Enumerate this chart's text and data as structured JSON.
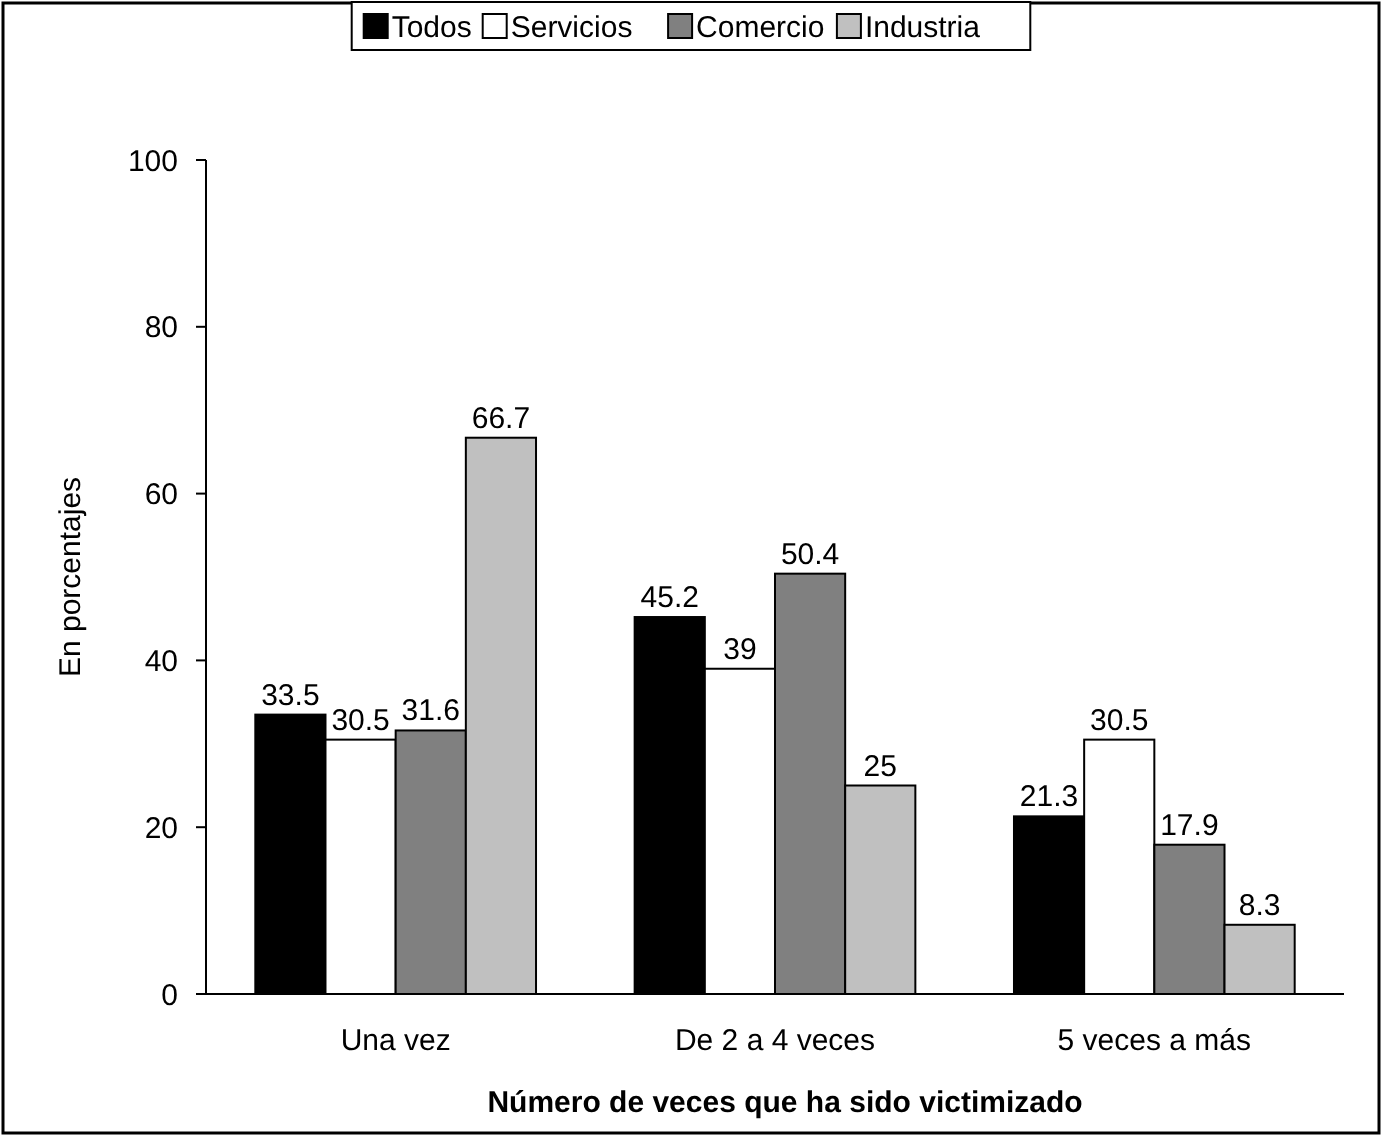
{
  "chart_data": {
    "type": "bar",
    "xlabel": "Número de veces que ha sido victimizado",
    "ylabel": "En porcentajes",
    "categories": [
      "Una vez",
      "De 2 a 4 veces",
      "5 veces a más"
    ],
    "series": [
      {
        "name": "Todos",
        "color": "#000000",
        "values": [
          33.5,
          45.2,
          21.3
        ]
      },
      {
        "name": "Servicios",
        "color": "#ffffff",
        "values": [
          30.5,
          39,
          30.5
        ]
      },
      {
        "name": "Comercio",
        "color": "#808080",
        "values": [
          31.6,
          50.4,
          17.9
        ]
      },
      {
        "name": "Industria",
        "color": "#c0c0c0",
        "values": [
          66.7,
          25,
          8.3
        ]
      }
    ],
    "ylim": [
      0,
      100
    ],
    "yticks": [
      0,
      20,
      40,
      60,
      80,
      100
    ],
    "grid": false,
    "legend": "top",
    "data_labels": true
  }
}
